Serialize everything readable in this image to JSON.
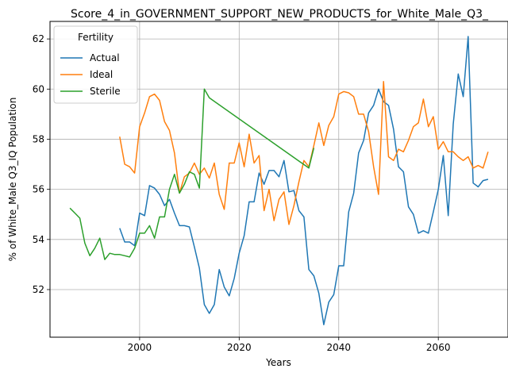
{
  "chart_data": {
    "type": "line",
    "title": "Score_4_in_GOVERNMENT_SUPPORT_NEW_PRODUCTS_for_White_Male_Q3_",
    "xlabel": "Years",
    "ylabel": "% of White_Male Q3_IQ Population",
    "xlim": [
      1982,
      2074
    ],
    "ylim": [
      50.1,
      62.7
    ],
    "xticks": [
      2000,
      2020,
      2040,
      2060
    ],
    "yticks": [
      52,
      54,
      56,
      58,
      60,
      62
    ],
    "grid": true,
    "legend": {
      "title": "Fertility",
      "position": "top-left"
    },
    "series": [
      {
        "name": "Actual",
        "color": "#1f77b4",
        "x": [
          1996,
          1997,
          1998,
          1999,
          2000,
          2001,
          2002,
          2003,
          2004,
          2005,
          2006,
          2007,
          2008,
          2009,
          2010,
          2011,
          2012,
          2013,
          2014,
          2015,
          2016,
          2017,
          2018,
          2019,
          2020,
          2021,
          2022,
          2023,
          2024,
          2025,
          2026,
          2027,
          2028,
          2029,
          2030,
          2031,
          2032,
          2033,
          2034,
          2035,
          2036,
          2037,
          2038,
          2039,
          2040,
          2041,
          2042,
          2043,
          2044,
          2045,
          2046,
          2047,
          2048,
          2049,
          2050,
          2051,
          2052,
          2053,
          2054,
          2055,
          2056,
          2057,
          2058,
          2059,
          2060,
          2061,
          2062,
          2063,
          2064,
          2065,
          2066,
          2067,
          2068,
          2069,
          2070
        ],
        "values": [
          54.45,
          53.9,
          53.9,
          53.75,
          55.05,
          54.95,
          56.15,
          56.05,
          55.8,
          55.35,
          55.6,
          55.05,
          54.55,
          54.55,
          54.5,
          53.7,
          52.85,
          51.4,
          51.05,
          51.4,
          52.8,
          52.1,
          51.75,
          52.45,
          53.45,
          54.15,
          55.5,
          55.5,
          56.65,
          56.2,
          56.75,
          56.75,
          56.5,
          57.15,
          55.9,
          55.95,
          55.15,
          54.9,
          52.8,
          52.55,
          51.85,
          50.6,
          51.5,
          51.8,
          52.95,
          52.95,
          55.1,
          55.85,
          57.45,
          57.95,
          59.05,
          59.35,
          60.0,
          59.5,
          59.35,
          58.4,
          56.9,
          56.7,
          55.3,
          55.0,
          54.25,
          54.35,
          54.25,
          55.1,
          56.0,
          57.35,
          54.95,
          58.6,
          60.6,
          59.7,
          62.1,
          56.25,
          56.1,
          56.35,
          56.4
        ]
      },
      {
        "name": "Ideal",
        "color": "#ff7f0e",
        "x": [
          1996,
          1997,
          1998,
          1999,
          2000,
          2001,
          2002,
          2003,
          2004,
          2005,
          2006,
          2007,
          2008,
          2009,
          2010,
          2011,
          2012,
          2013,
          2014,
          2015,
          2016,
          2017,
          2018,
          2019,
          2020,
          2021,
          2022,
          2023,
          2024,
          2025,
          2026,
          2027,
          2028,
          2029,
          2030,
          2031,
          2032,
          2033,
          2034,
          2035,
          2036,
          2037,
          2038,
          2039,
          2040,
          2041,
          2042,
          2043,
          2044,
          2045,
          2046,
          2047,
          2048,
          2049,
          2050,
          2051,
          2052,
          2053,
          2054,
          2055,
          2056,
          2057,
          2058,
          2059,
          2060,
          2061,
          2062,
          2063,
          2064,
          2065,
          2066,
          2067,
          2068,
          2069,
          2070
        ],
        "values": [
          58.1,
          57.0,
          56.9,
          56.65,
          58.5,
          59.05,
          59.7,
          59.8,
          59.55,
          58.7,
          58.35,
          57.45,
          55.85,
          56.5,
          56.65,
          57.05,
          56.6,
          56.85,
          56.45,
          57.05,
          55.8,
          55.2,
          57.05,
          57.05,
          57.85,
          56.9,
          58.2,
          57.05,
          57.35,
          55.15,
          56.0,
          54.75,
          55.6,
          55.9,
          54.6,
          55.35,
          56.3,
          57.15,
          56.9,
          57.75,
          58.65,
          57.75,
          58.55,
          58.9,
          59.8,
          59.9,
          59.85,
          59.7,
          59.0,
          59.0,
          58.3,
          56.9,
          55.8,
          60.3,
          57.3,
          57.15,
          57.6,
          57.5,
          57.95,
          58.5,
          58.65,
          59.6,
          58.5,
          58.9,
          57.6,
          57.9,
          57.5,
          57.5,
          57.3,
          57.15,
          57.3,
          56.85,
          56.95,
          56.85,
          57.5
        ]
      },
      {
        "name": "Sterile",
        "color": "#2ca02c",
        "x": [
          1986,
          1987,
          1988,
          1989,
          1990,
          1991,
          1992,
          1993,
          1994,
          1995,
          1996,
          1997,
          1998,
          1999,
          2000,
          2001,
          2002,
          2003,
          2004,
          2005,
          2006,
          2007,
          2008,
          2009,
          2010,
          2011,
          2012,
          2013,
          2014,
          2034,
          2035
        ],
        "values": [
          55.25,
          55.05,
          54.85,
          53.85,
          53.35,
          53.65,
          54.05,
          53.2,
          53.45,
          53.4,
          53.4,
          53.35,
          53.3,
          53.65,
          54.25,
          54.25,
          54.55,
          54.05,
          54.9,
          54.9,
          56.0,
          56.6,
          55.85,
          56.2,
          56.7,
          56.6,
          56.05,
          60.0,
          59.65,
          56.85,
          57.65
        ]
      }
    ]
  }
}
